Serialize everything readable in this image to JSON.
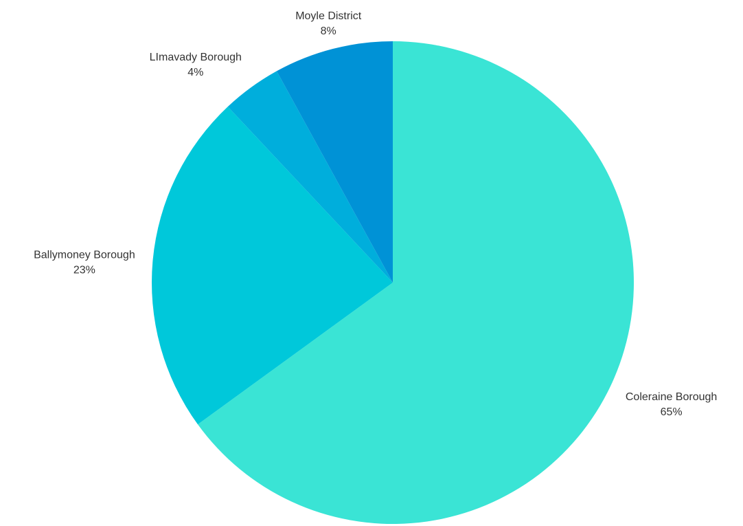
{
  "chart_data": {
    "type": "pie",
    "start_angle_deg": 0,
    "direction": "clockwise",
    "slices": [
      {
        "label": "Coleraine Borough",
        "percent_label": "65%",
        "value": 65,
        "color": "#3ae4d5"
      },
      {
        "label": "Ballymoney Borough",
        "percent_label": "23%",
        "value": 23,
        "color": "#00c8da"
      },
      {
        "label": "LImavady Borough",
        "percent_label": "4%",
        "value": 4,
        "color": "#00aedc"
      },
      {
        "label": "Moyle District",
        "percent_label": "8%",
        "value": 8,
        "color": "#0092d6"
      }
    ],
    "legend": "none",
    "label_color": "#333333"
  }
}
